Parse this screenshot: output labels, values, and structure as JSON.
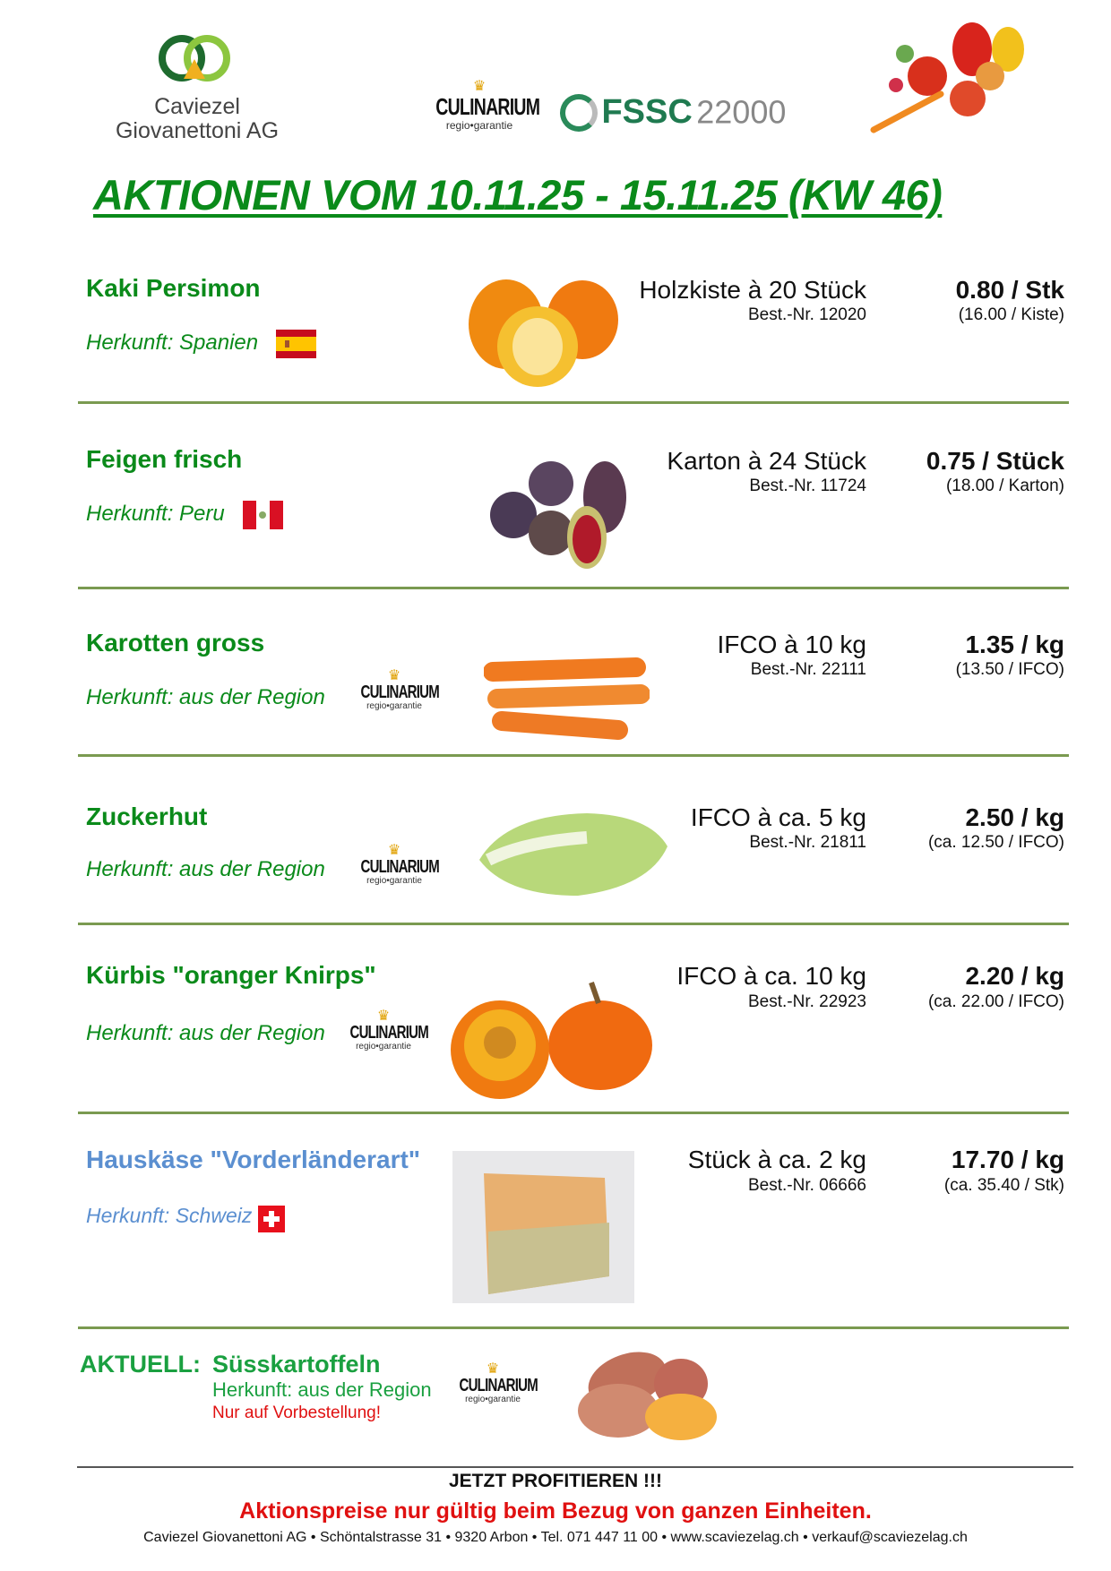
{
  "header": {
    "company_logo_text": [
      "Caviezel",
      "Giovanettoni AG"
    ],
    "culinarium_logo": {
      "name": "CULINARIUM",
      "tagline": "regio•garantie"
    },
    "fssc_logo": {
      "brand": "FSSC",
      "number": "22000"
    },
    "title": "AKTIONEN VOM 10.11.25 - 15.11.25 (KW 46)"
  },
  "products": [
    {
      "name": "Kaki Persimon",
      "origin": "Herkunft: Spanien",
      "origin_flag": "spain-flag",
      "unit": "Holzkiste à 20 Stück",
      "order_no": "Best.-Nr.  12020",
      "price": "0.80 / Stk",
      "price_unit": "(16.00 / Kiste)"
    },
    {
      "name": "Feigen frisch",
      "origin": "Herkunft: Peru",
      "origin_flag": "peru-flag",
      "unit": "Karton à 24 Stück",
      "order_no": "Best.-Nr. 11724",
      "price": "0.75 / Stück",
      "price_unit": "(18.00 / Karton)"
    },
    {
      "name": "Karotten gross",
      "origin": "Herkunft: aus der Region",
      "origin_flag": "culinarium-logo",
      "unit": "IFCO à 10 kg",
      "order_no": "Best.-Nr. 22111",
      "price": "1.35 / kg",
      "price_unit": "(13.50 / IFCO)"
    },
    {
      "name": "Zuckerhut",
      "origin": "Herkunft: aus der Region",
      "origin_flag": "culinarium-logo",
      "unit": "IFCO à ca. 5 kg",
      "order_no": "Best.-Nr. 21811",
      "price": "2.50 / kg",
      "price_unit": "(ca. 12.50 / IFCO)"
    },
    {
      "name": "Kürbis \"oranger Knirps\"",
      "origin": "Herkunft: aus der Region",
      "origin_flag": "culinarium-logo",
      "unit": "IFCO à ca. 10 kg",
      "order_no": "Best.-Nr. 22923",
      "price": "2.20 / kg",
      "price_unit": "(ca. 22.00 / IFCO)"
    },
    {
      "name": "Hauskäse \"Vorderländerart\"",
      "origin": "Herkunft: Schweiz",
      "origin_flag": "swiss-flag",
      "unit": "Stück à ca. 2 kg",
      "order_no": "Best.-Nr. 06666",
      "price": "17.70 / kg",
      "price_unit": "(ca. 35.40 / Stk)"
    }
  ],
  "aktuell": {
    "label": "AKTUELL:",
    "name": "Süsskartoffeln",
    "origin": "Herkunft: aus der Region",
    "note": "Nur auf Vorbestellung!"
  },
  "footer": {
    "cta": "JETZT PROFITIEREN !!!",
    "notice": "Aktionspreise nur gültig beim Bezug von ganzen Einheiten.",
    "address": "Caviezel Giovanettoni AG • Schöntalstrasse 31 • 9320 Arbon • Tel. 071 447 11 00 • www.scaviezelag.ch • verkauf@scaviezelag.ch"
  },
  "colors": {
    "green": "#0a8a1a",
    "blue": "#5b8fd0",
    "red": "#e01010",
    "separator": "#7a9a50"
  }
}
